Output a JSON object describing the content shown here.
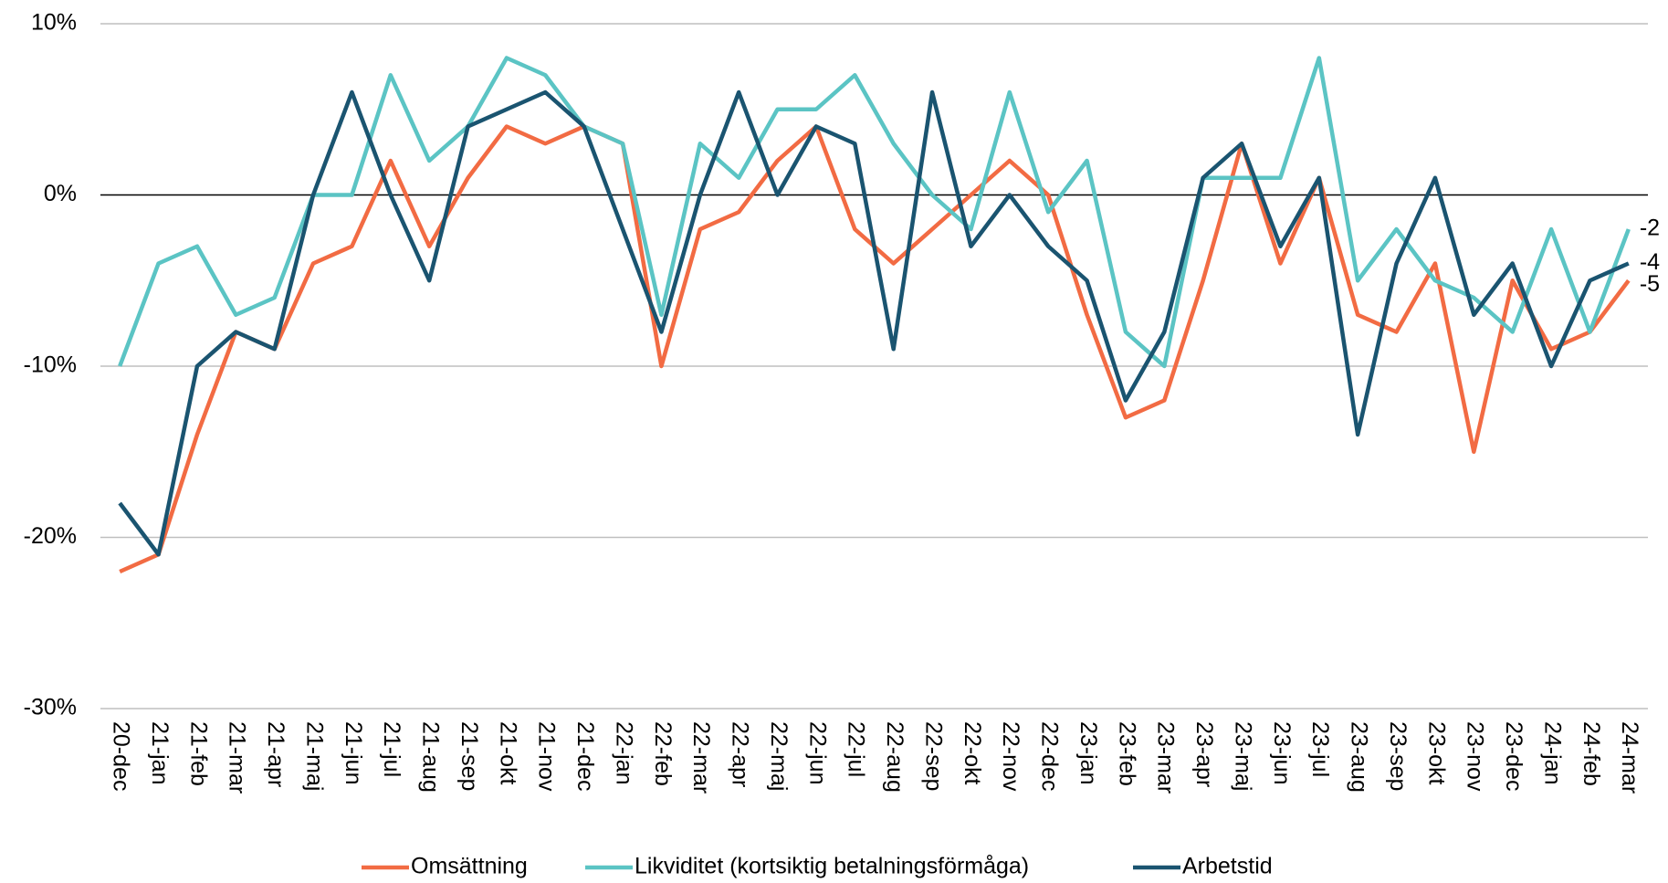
{
  "chart_data": {
    "type": "line",
    "categories": [
      "20-dec",
      "21-jan",
      "21-feb",
      "21-mar",
      "21-apr",
      "21-maj",
      "21-jun",
      "21-jul",
      "21-aug",
      "21-sep",
      "21-okt",
      "21-nov",
      "21-dec",
      "22-jan",
      "22-feb",
      "22-mar",
      "22-apr",
      "22-maj",
      "22-jun",
      "22-jul",
      "22-aug",
      "22-sep",
      "22-okt",
      "22-nov",
      "22-dec",
      "23-jan",
      "23-feb",
      "23-mar",
      "23-apr",
      "23-maj",
      "23-jun",
      "23-jul",
      "23-aug",
      "23-sep",
      "23-okt",
      "23-nov",
      "23-dec",
      "24-jan",
      "24-feb",
      "24-mar"
    ],
    "series": [
      {
        "name": "Omsättning",
        "color": "#f26b43",
        "values": [
          -22,
          -21,
          -14,
          -8,
          -9,
          -4,
          -3,
          2,
          -3,
          1,
          4,
          3,
          4,
          3,
          -10,
          -2,
          -1,
          2,
          4,
          -2,
          -4,
          -2,
          0,
          2,
          0,
          -7,
          -13,
          -12,
          -5,
          3,
          -4,
          1,
          -7,
          -8,
          -4,
          -15,
          -5,
          -9,
          -8,
          -5
        ]
      },
      {
        "name": "Likviditet (kortsiktig betalningsförmåga)",
        "color": "#5bc4c4",
        "values": [
          -10,
          -4,
          -3,
          -7,
          -6,
          0,
          0,
          7,
          2,
          4,
          8,
          7,
          4,
          3,
          -7,
          3,
          1,
          5,
          5,
          7,
          3,
          0,
          -2,
          6,
          -1,
          2,
          -8,
          -10,
          1,
          1,
          1,
          8,
          -5,
          -2,
          -5,
          -6,
          -8,
          -2,
          -8,
          -2
        ]
      },
      {
        "name": "Arbetstid",
        "color": "#1a5470",
        "values": [
          -18,
          -21,
          -10,
          -8,
          -9,
          0,
          6,
          0,
          -5,
          4,
          5,
          6,
          4,
          -2,
          -8,
          0,
          6,
          0,
          4,
          3,
          -9,
          6,
          -3,
          0,
          -3,
          -5,
          -12,
          -8,
          1,
          3,
          -3,
          1,
          -14,
          -4,
          1,
          -7,
          -4,
          -10,
          -5,
          -4
        ]
      }
    ],
    "ylim": [
      -30,
      10
    ],
    "yticks": [
      {
        "value": -30,
        "label": "-30%"
      },
      {
        "value": -20,
        "label": "-20%"
      },
      {
        "value": -10,
        "label": "-10%"
      },
      {
        "value": 0,
        "label": "0%"
      },
      {
        "value": 10,
        "label": "10%"
      }
    ],
    "grid": true,
    "legend": "bottom"
  }
}
